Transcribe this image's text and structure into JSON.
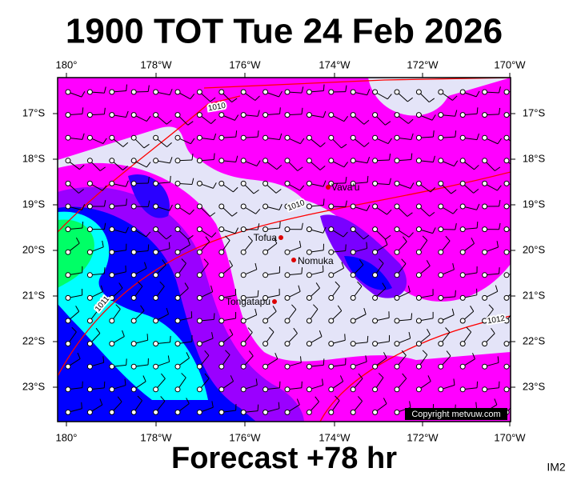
{
  "title": "1900 TOT Tue 24 Feb 2026",
  "lon_labels": [
    "180°",
    "178°W",
    "176°W",
    "174°W",
    "172°W",
    "170°W"
  ],
  "lat_labels": [
    "17°S",
    "18°S",
    "19°S",
    "20°S",
    "21°S",
    "22°S",
    "23°S"
  ],
  "places": [
    "Vava'u",
    "Tofua",
    "Nomuka",
    "Tongatapu"
  ],
  "isobar_labels": [
    "1010",
    "1010",
    "1011",
    "1012"
  ],
  "copyright": "Copyright metvuw.com",
  "footer": "Forecast +78 hr",
  "corner_label": "IM2"
}
